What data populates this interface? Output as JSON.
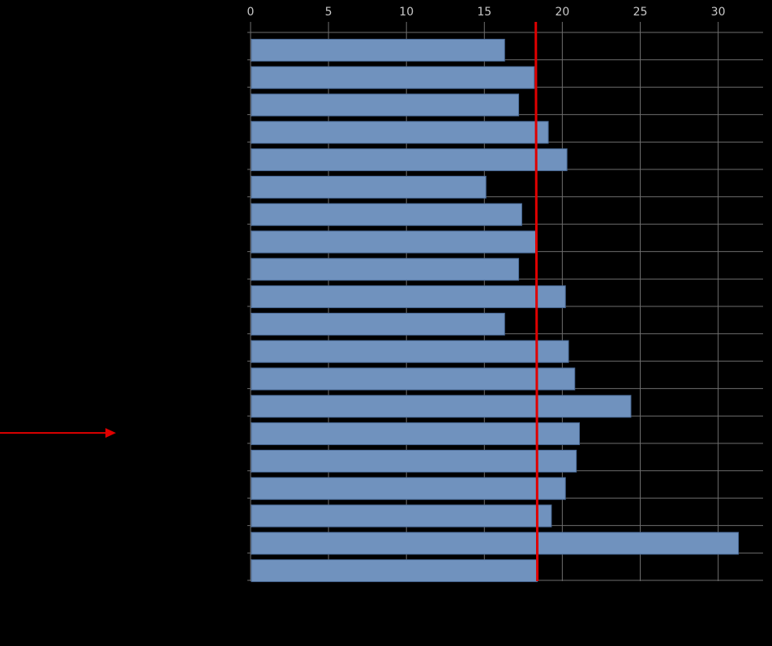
{
  "chart_data": {
    "type": "bar",
    "orientation": "horizontal",
    "title": "",
    "xlabel": "",
    "ylabel": "",
    "xlim": [
      0,
      32
    ],
    "x_ticks": [
      0,
      5,
      10,
      15,
      20,
      25,
      30
    ],
    "x_tick_labels": [
      "0",
      "5",
      "10",
      "15",
      "20",
      "25",
      "30"
    ],
    "x_axis_position": "top",
    "grid": true,
    "legend": "none",
    "values": [
      16.3,
      18.2,
      17.2,
      19.1,
      20.3,
      15.1,
      17.4,
      18.3,
      17.2,
      20.2,
      16.3,
      20.4,
      20.8,
      24.4,
      21.1,
      20.9,
      20.2,
      19.3,
      31.3,
      18.4
    ],
    "reference_line": [
      18.3,
      18.4
    ],
    "highlighted_bar_index": 14,
    "colors": {
      "background": "#000000",
      "bar": "#7092be",
      "bar_border": "#4a6a96",
      "grid": "#6e6e6e",
      "reference_line": "#e00000",
      "highlight_arrow": "#e00000",
      "tick_label": "#c8c8c8"
    }
  }
}
